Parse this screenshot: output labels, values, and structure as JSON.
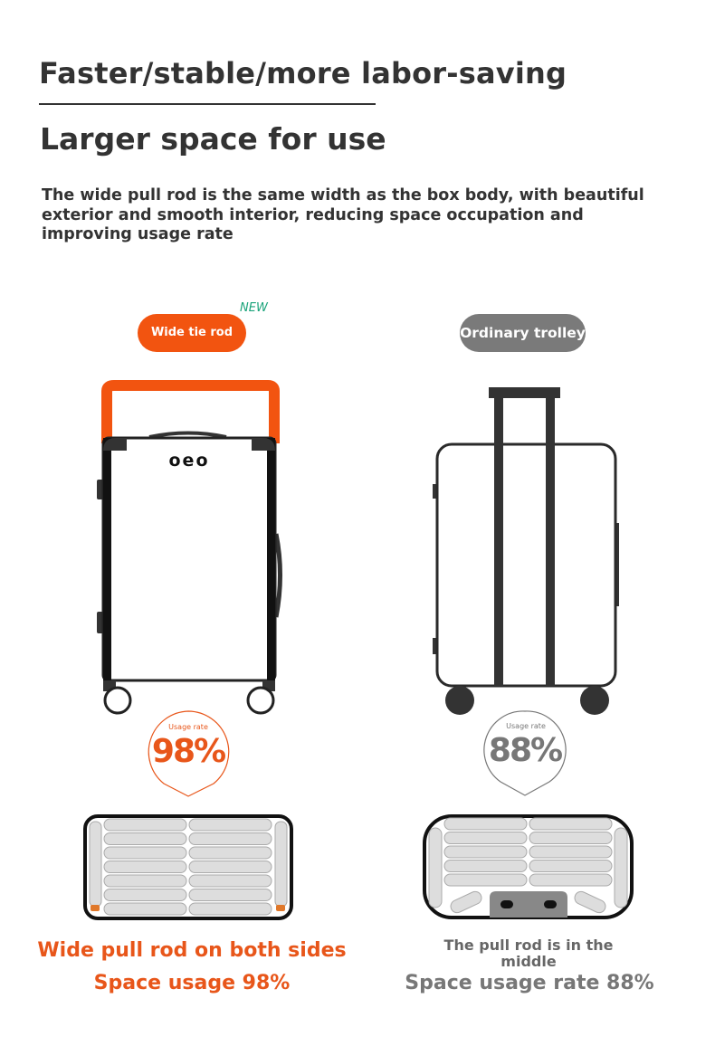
{
  "header": {
    "title": "Faster/stable/more labor-saving",
    "subtitle": "Larger space for use",
    "description": "The wide pull rod is the same width as the box body, with beautiful exterior and smooth interior, reducing space occupation and improving usage rate"
  },
  "left": {
    "badge": "Wide tie rod",
    "new_tag": "NEW",
    "brand_logo": "oeo",
    "usage_label": "Usage rate",
    "usage_value": "98%",
    "usage_percent": 98,
    "caption": "Wide pull rod on both sides",
    "summary": "Space usage 98%",
    "accent_color": "#f25410"
  },
  "right": {
    "badge": "Ordinary trolley",
    "usage_label": "Usage rate",
    "usage_value": "88%",
    "usage_percent": 88,
    "caption": "The pull rod is in the middle",
    "summary": "Space usage rate 88%",
    "accent_color": "#7a7a7a"
  }
}
